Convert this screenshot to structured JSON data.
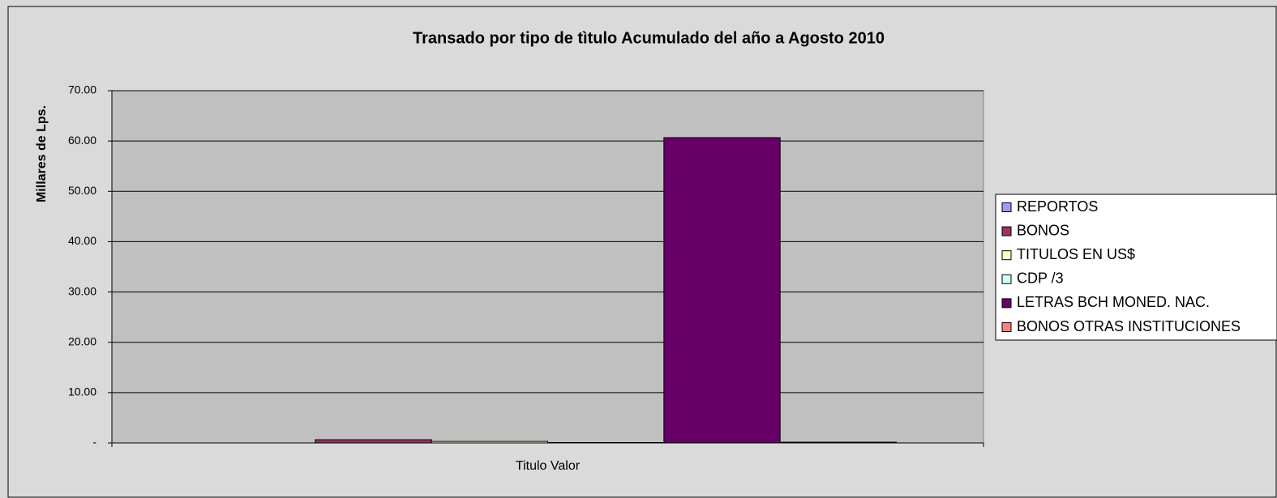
{
  "chart_data": {
    "type": "bar",
    "title": "Transado por tipo de tìtulo Acumulado del año a Agosto 2010",
    "y_axis_label": "Millares de Lps.",
    "categories": [
      "Titulo Valor"
    ],
    "series": [
      {
        "name": "REPORTOS",
        "color": "#9999ff",
        "values": [
          0
        ]
      },
      {
        "name": "BONOS",
        "color": "#993366",
        "values": [
          0.64
        ]
      },
      {
        "name": "TITULOS EN US$",
        "color": "#ffffcc",
        "values": [
          0.3
        ]
      },
      {
        "name": "CDP /3",
        "color": "#ccffff",
        "values": [
          0.08
        ]
      },
      {
        "name": "LETRAS BCH MONED. NAC.",
        "color": "#660066",
        "values": [
          60.67
        ]
      },
      {
        "name": "BONOS OTRAS INSTITUCIONES",
        "color": "#ff8080",
        "values": [
          0.15
        ]
      }
    ],
    "ylim": [
      0,
      70
    ],
    "yticks": [
      {
        "value": 0,
        "label": "-"
      },
      {
        "value": 10,
        "label": "10.00"
      },
      {
        "value": 20,
        "label": "20.00"
      },
      {
        "value": 30,
        "label": "30.00"
      },
      {
        "value": 40,
        "label": "40.00"
      },
      {
        "value": 50,
        "label": "50.00"
      },
      {
        "value": 60,
        "label": "60.00"
      },
      {
        "value": 70,
        "label": "70.00"
      }
    ],
    "grid": true,
    "legend": "right"
  }
}
